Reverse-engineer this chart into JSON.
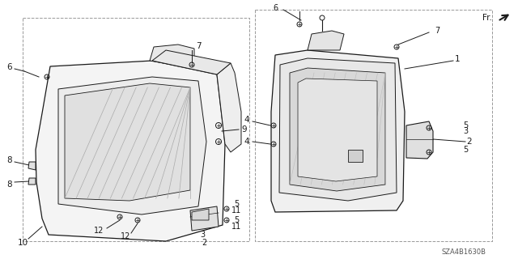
{
  "bg_color": "#ffffff",
  "line_color": "#1a1a1a",
  "diagram_id": "SZA4B1630B",
  "gray_fill": "#f2f2f2",
  "dark_gray": "#c8c8c8",
  "hatch_color": "#aaaaaa"
}
